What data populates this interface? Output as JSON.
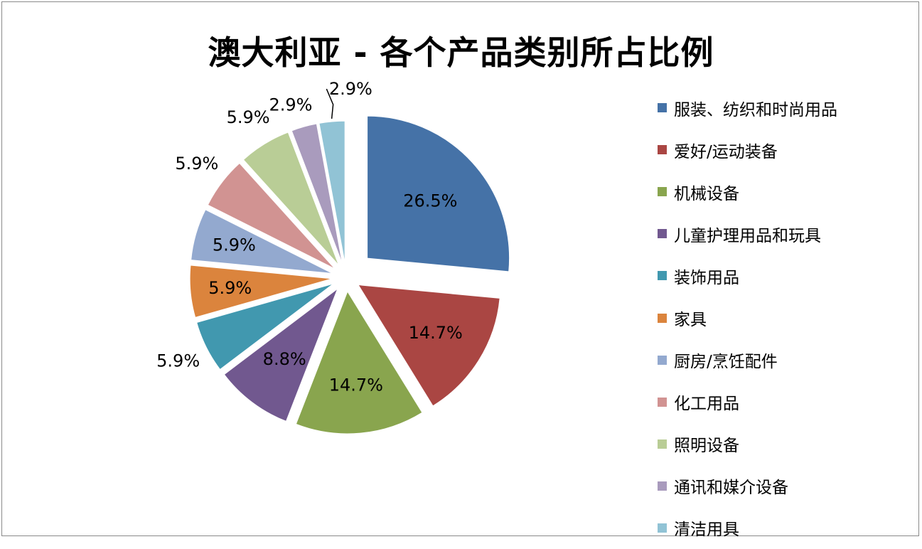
{
  "chart_data": {
    "type": "pie",
    "title": "澳大利亚 - 各个产品类别所占比例",
    "legend_position": "right",
    "exploded": true,
    "slices": [
      {
        "name": "服装、纺织和时尚用品",
        "value": 26.5,
        "label": "26.5%",
        "color": "#4572a7"
      },
      {
        "name": "爱好/运动装备",
        "value": 14.7,
        "label": "14.7%",
        "color": "#aa4643"
      },
      {
        "name": "机械设备",
        "value": 14.7,
        "label": "14.7%",
        "color": "#89a54e"
      },
      {
        "name": "儿童护理用品和玩具",
        "value": 8.8,
        "label": "8.8%",
        "color": "#71588f"
      },
      {
        "name": "装饰用品",
        "value": 5.9,
        "label": "5.9%",
        "color": "#4198af"
      },
      {
        "name": "家具",
        "value": 5.9,
        "label": "5.9%",
        "color": "#db843d"
      },
      {
        "name": "厨房/烹饪配件",
        "value": 5.9,
        "label": "5.9%",
        "color": "#93a9cf"
      },
      {
        "name": "化工用品",
        "value": 5.9,
        "label": "5.9%",
        "color": "#d19392"
      },
      {
        "name": "照明设备",
        "value": 5.9,
        "label": "5.9%",
        "color": "#b9cd96"
      },
      {
        "name": "通讯和媒介设备",
        "value": 2.9,
        "label": "2.9%",
        "color": "#a99bbd"
      },
      {
        "name": "清洁用具",
        "value": 2.9,
        "label": "2.9%",
        "color": "#91c3d5"
      }
    ]
  }
}
